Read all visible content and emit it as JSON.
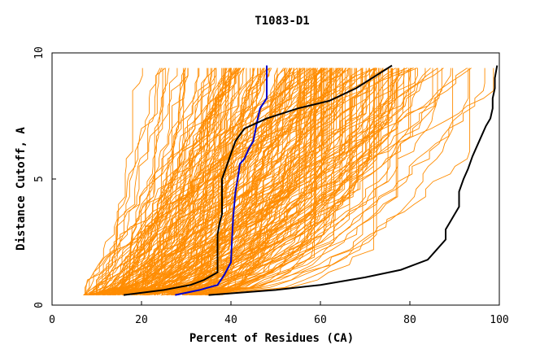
{
  "chart_data": {
    "type": "line",
    "title": "T1083-D1",
    "xlabel": "Percent of Residues (CA)",
    "ylabel": "Distance Cutoff, A",
    "xlim": [
      0,
      100
    ],
    "ylim": [
      0,
      10
    ],
    "x_ticks": [
      "0",
      "20",
      "40",
      "60",
      "80",
      "100"
    ],
    "y_ticks": [
      "0",
      "5",
      "10"
    ],
    "grid": false,
    "colors": {
      "background_curves": "#ff8c00",
      "highlight_blue": "#0000cc",
      "highlight_black": "#000000"
    },
    "highlight_series": [
      {
        "color": "#0000cc",
        "points": [
          [
            27.5,
            0.4
          ],
          [
            33,
            0.6
          ],
          [
            37,
            0.8
          ],
          [
            38.5,
            1.2
          ],
          [
            40,
            1.7
          ],
          [
            40.2,
            2.5
          ],
          [
            40.5,
            3.5
          ],
          [
            41,
            4.5
          ],
          [
            41.5,
            5
          ],
          [
            42,
            5.6
          ],
          [
            43,
            5.8
          ],
          [
            44,
            6.2
          ],
          [
            45,
            6.5
          ],
          [
            46,
            7.4
          ],
          [
            46.5,
            7.8
          ],
          [
            48,
            8.2
          ],
          [
            48,
            9.0
          ],
          [
            48,
            9.5
          ]
        ]
      },
      {
        "color": "#000000",
        "points": [
          [
            16,
            0.4
          ],
          [
            25,
            0.6
          ],
          [
            31,
            0.8
          ],
          [
            34,
            1.0
          ],
          [
            37,
            1.3
          ],
          [
            37,
            2.0
          ],
          [
            37,
            2.8
          ],
          [
            37.5,
            3.3
          ],
          [
            38,
            3.6
          ],
          [
            38,
            4.0
          ],
          [
            38,
            4.5
          ],
          [
            38,
            5.0
          ],
          [
            39,
            5.5
          ],
          [
            40,
            6.0
          ],
          [
            41,
            6.5
          ],
          [
            43,
            7.0
          ],
          [
            48,
            7.4
          ],
          [
            55,
            7.8
          ],
          [
            62,
            8.1
          ],
          [
            68,
            8.6
          ],
          [
            76,
            9.5
          ]
        ]
      },
      {
        "color": "#000000",
        "points": [
          [
            35,
            0.4
          ],
          [
            50,
            0.6
          ],
          [
            60,
            0.8
          ],
          [
            70,
            1.1
          ],
          [
            78,
            1.4
          ],
          [
            84,
            1.8
          ],
          [
            86,
            2.2
          ],
          [
            88,
            2.6
          ],
          [
            88,
            3.0
          ],
          [
            89,
            3.3
          ],
          [
            90,
            3.6
          ],
          [
            91,
            3.9
          ],
          [
            91,
            4.5
          ],
          [
            92,
            5.0
          ],
          [
            93,
            5.4
          ],
          [
            94,
            5.9
          ],
          [
            95,
            6.3
          ],
          [
            96,
            6.7
          ],
          [
            97,
            7.1
          ],
          [
            98,
            7.4
          ],
          [
            98.5,
            7.8
          ],
          [
            98.5,
            8.2
          ],
          [
            99,
            8.6
          ],
          [
            99,
            9.0
          ],
          [
            99.5,
            9.5
          ]
        ]
      }
    ]
  }
}
